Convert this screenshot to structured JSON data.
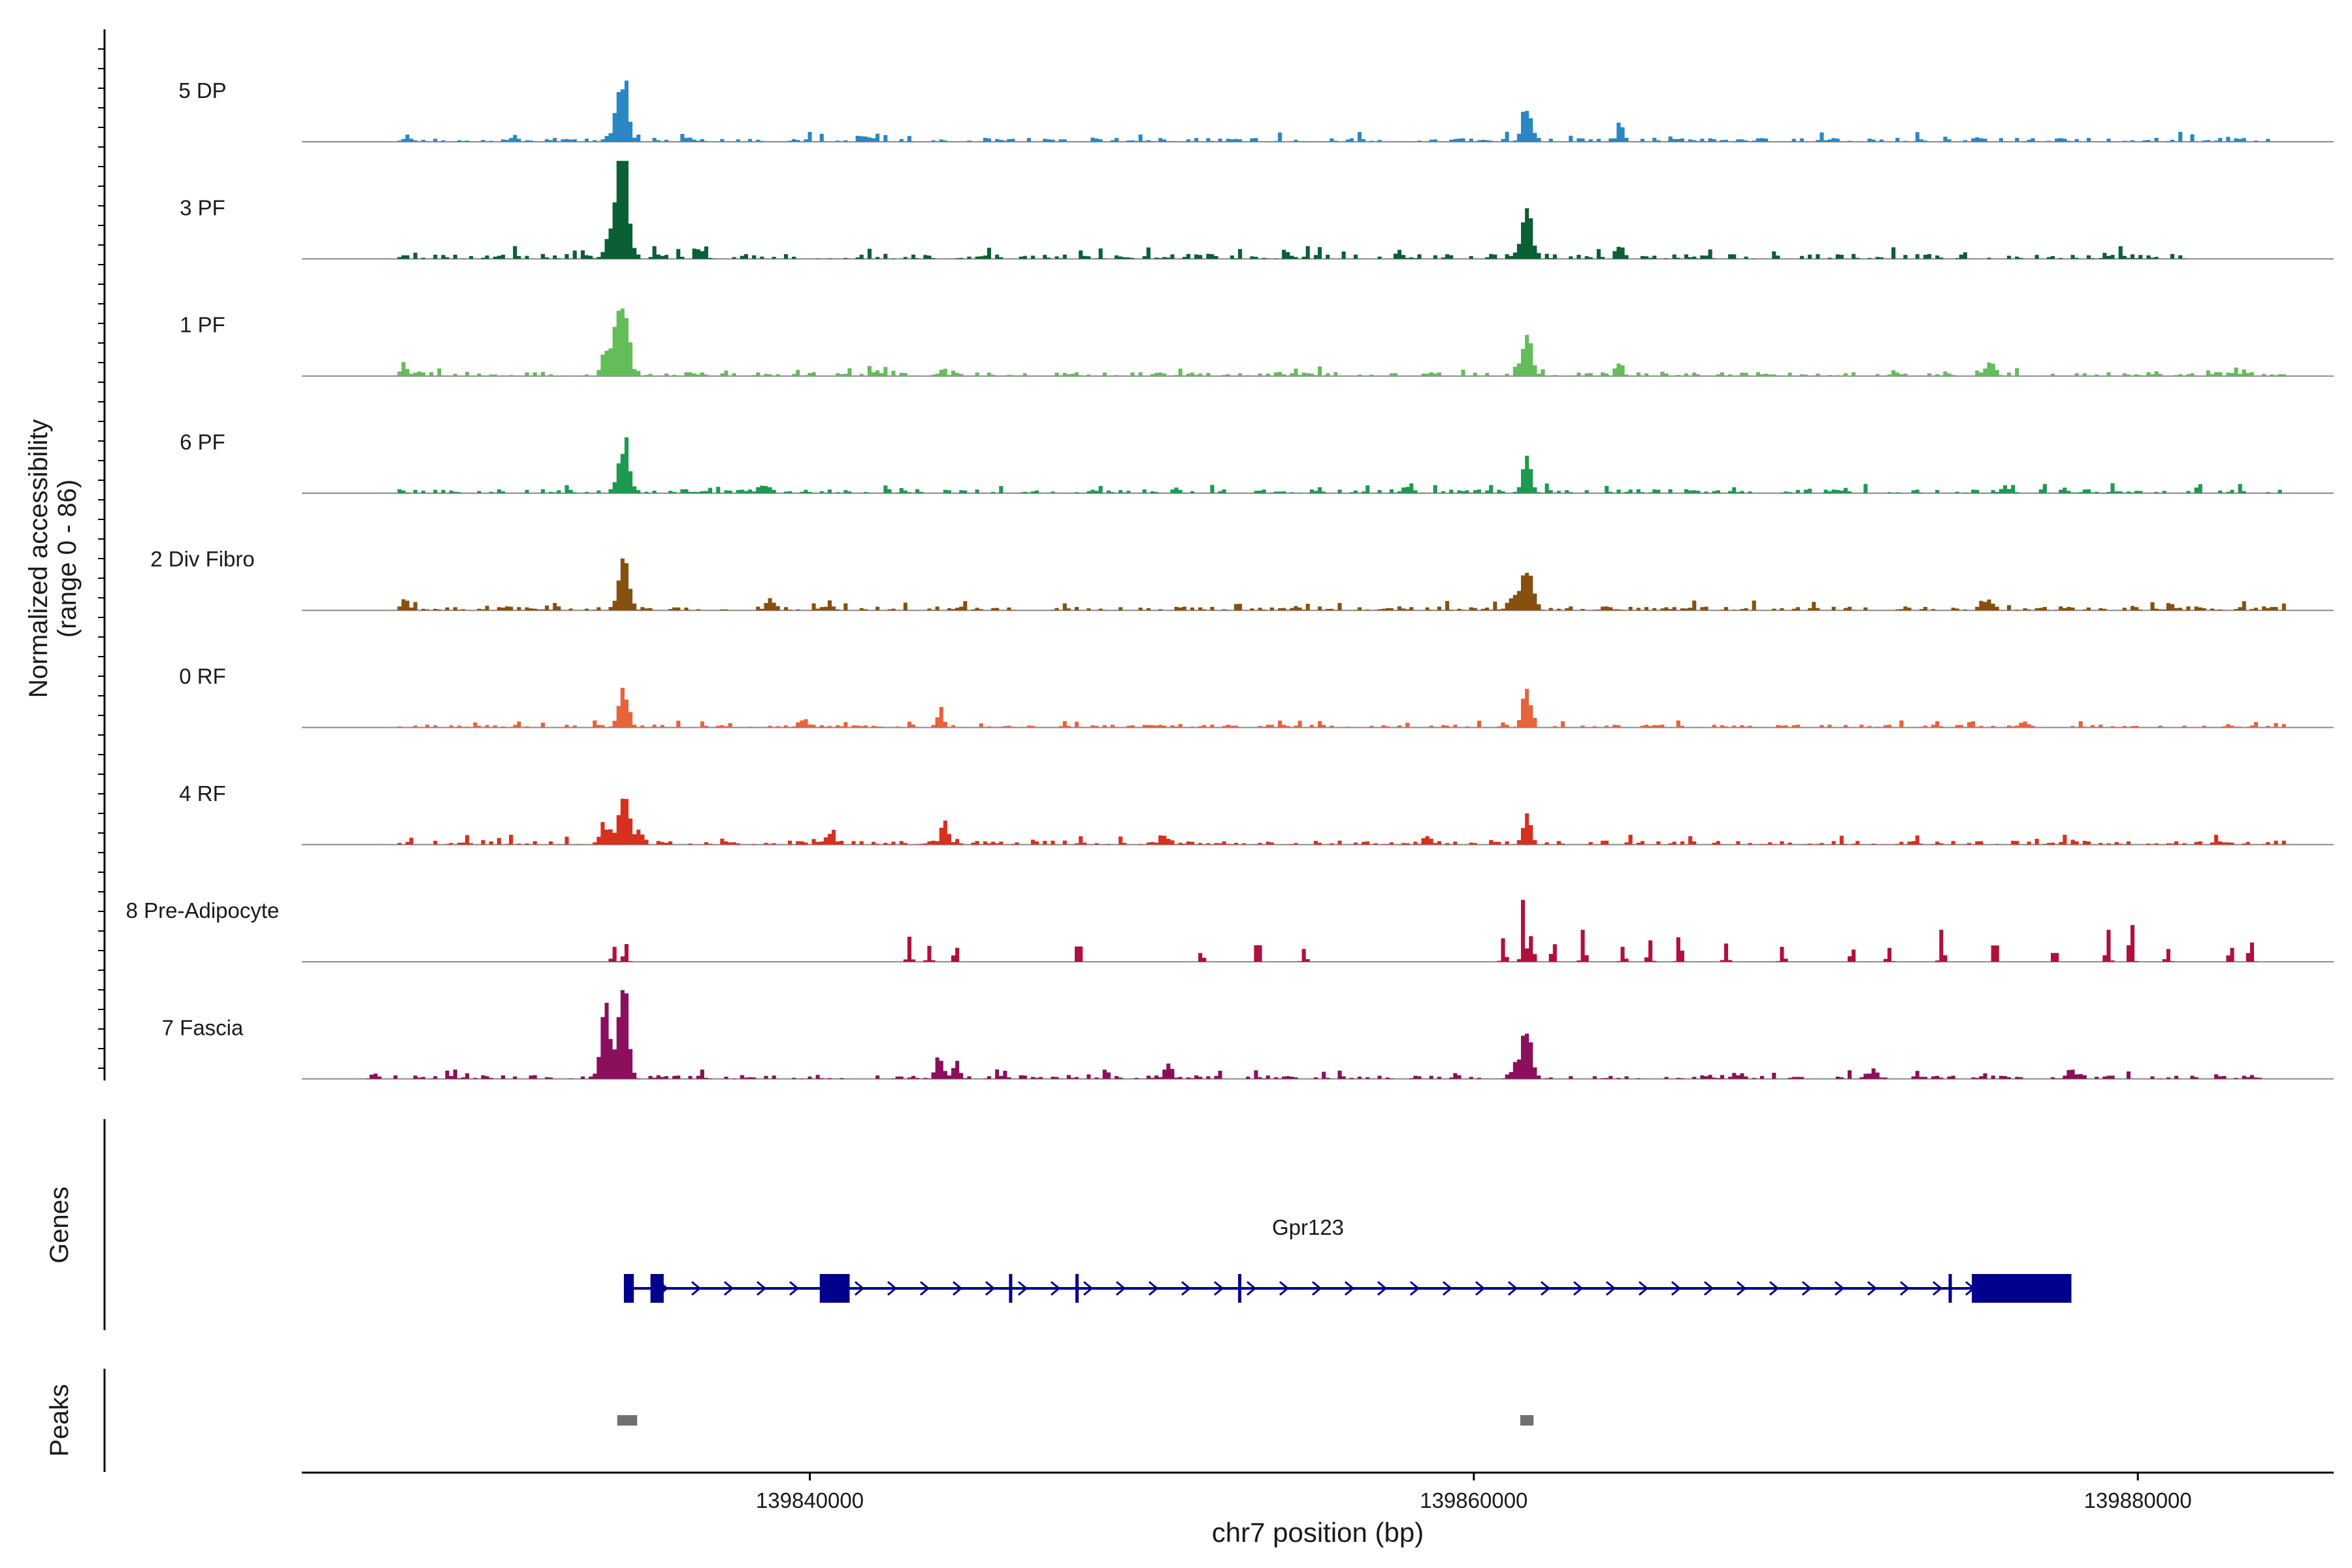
{
  "chart_data": {
    "type": "area",
    "title": "",
    "ylabel_line1": "Normalized accessibility",
    "ylabel_line2": "(range 0 - 86)",
    "ylim": [
      0,
      86
    ],
    "xlabel": "chr7 position (bp)",
    "xlim": [
      139824700,
      139885900
    ],
    "x_ticks": [
      {
        "value": 139840000,
        "label": "139840000"
      },
      {
        "value": 139860000,
        "label": "139860000"
      },
      {
        "value": 139880000,
        "label": "139880000"
      }
    ],
    "bin_bp": 120,
    "tracks": [
      {
        "name": "5 DP",
        "color": "#2b87c4",
        "coverage": [
          [
            139827600,
            139884000
          ]
        ],
        "sparse": false,
        "noise": 3.5,
        "seed": 11,
        "peaks": [
          [
            139834300,
            46,
            160
          ],
          [
            139834500,
            22,
            100
          ],
          [
            139861600,
            34,
            140
          ],
          [
            139864400,
            13,
            100
          ],
          [
            139831100,
            4,
            90
          ],
          [
            139841600,
            5,
            120
          ],
          [
            139868600,
            4,
            90
          ],
          [
            139875100,
            3,
            80
          ]
        ]
      },
      {
        "name": "3 PF",
        "color": "#0b5f34",
        "coverage": [
          [
            139827600,
            139881400
          ]
        ],
        "sparse": false,
        "noise": 4.5,
        "seed": 23,
        "peaks": [
          [
            139834400,
            78,
            130
          ],
          [
            139834200,
            40,
            220
          ],
          [
            139861600,
            38,
            150
          ],
          [
            139864400,
            11,
            100
          ],
          [
            139836700,
            5,
            120
          ],
          [
            139857800,
            4,
            110
          ]
        ]
      },
      {
        "name": "1 PF",
        "color": "#63bd59",
        "coverage": [
          [
            139827600,
            139884400
          ]
        ],
        "sparse": false,
        "noise": 3.5,
        "seed": 37,
        "peaks": [
          [
            139834400,
            70,
            140
          ],
          [
            139834100,
            30,
            180
          ],
          [
            139833800,
            12,
            90
          ],
          [
            139861600,
            30,
            150
          ],
          [
            139864400,
            11,
            100
          ],
          [
            139827800,
            10,
            120
          ],
          [
            139875600,
            12,
            120
          ],
          [
            139842000,
            5,
            120
          ],
          [
            139844000,
            4,
            120
          ]
        ]
      },
      {
        "name": "6 PF",
        "color": "#1e9a50",
        "coverage": [
          [
            139827600,
            139884400
          ]
        ],
        "sparse": false,
        "noise": 3.5,
        "seed": 41,
        "peaks": [
          [
            139834400,
            45,
            150
          ],
          [
            139861600,
            26,
            140
          ],
          [
            139838600,
            8,
            160
          ],
          [
            139858000,
            6,
            150
          ],
          [
            139876000,
            5,
            140
          ]
        ]
      },
      {
        "name": "2 Div Fibro",
        "color": "#86510f",
        "coverage": [
          [
            139827600,
            139884400
          ]
        ],
        "sparse": false,
        "noise": 3.5,
        "seed": 53,
        "peaks": [
          [
            139834400,
            45,
            150
          ],
          [
            139861600,
            38,
            150
          ],
          [
            139861200,
            12,
            160
          ],
          [
            139827800,
            10,
            100
          ],
          [
            139838800,
            8,
            130
          ],
          [
            139875500,
            8,
            100
          ]
        ]
      },
      {
        "name": "0 RF",
        "color": "#e8623a",
        "coverage": [
          [
            139827600,
            139884400
          ]
        ],
        "sparse": false,
        "noise": 2.5,
        "seed": 67,
        "peaks": [
          [
            139834400,
            30,
            150
          ],
          [
            139861600,
            32,
            130
          ],
          [
            139843950,
            10,
            110
          ],
          [
            139839800,
            6,
            150
          ],
          [
            139876600,
            5,
            150
          ]
        ]
      },
      {
        "name": "4 RF",
        "color": "#d7301f",
        "coverage": [
          [
            139827600,
            139884400
          ]
        ],
        "sparse": false,
        "noise": 3.5,
        "seed": 79,
        "peaks": [
          [
            139834400,
            52,
            150
          ],
          [
            139833800,
            18,
            110
          ],
          [
            139861600,
            25,
            120
          ],
          [
            139844050,
            17,
            110
          ],
          [
            139840650,
            13,
            110
          ],
          [
            139850650,
            9,
            120
          ],
          [
            139858600,
            8,
            110
          ],
          [
            139834900,
            10,
            110
          ]
        ]
      },
      {
        "name": "8 Pre-Adipocyte",
        "color": "#b0103c",
        "coverage": [],
        "sparse": true,
        "noise": 0,
        "seed": 97,
        "peaks": [
          [
            139834100,
            14,
            55
          ],
          [
            139834450,
            18,
            55
          ],
          [
            139843000,
            22,
            55
          ],
          [
            139843600,
            14,
            55
          ],
          [
            139844400,
            16,
            55
          ],
          [
            139848100,
            22,
            60
          ],
          [
            139851800,
            10,
            55
          ],
          [
            139853500,
            24,
            60
          ],
          [
            139854900,
            12,
            55
          ],
          [
            139860900,
            22,
            55
          ],
          [
            139861500,
            58,
            55
          ],
          [
            139861750,
            26,
            55
          ],
          [
            139862400,
            20,
            55
          ],
          [
            139863300,
            30,
            55
          ],
          [
            139864500,
            14,
            55
          ],
          [
            139865300,
            20,
            55
          ],
          [
            139866200,
            28,
            55
          ],
          [
            139867600,
            16,
            55
          ],
          [
            139869300,
            14,
            55
          ],
          [
            139871400,
            14,
            55
          ],
          [
            139872500,
            13,
            55
          ],
          [
            139874100,
            30,
            55
          ],
          [
            139875700,
            26,
            55
          ],
          [
            139877500,
            14,
            55
          ],
          [
            139879100,
            30,
            55
          ],
          [
            139879800,
            42,
            55
          ],
          [
            139880900,
            12,
            55
          ],
          [
            139882800,
            16,
            55
          ],
          [
            139883400,
            22,
            55
          ]
        ]
      },
      {
        "name": "7 Fascia",
        "color": "#8b0f5c",
        "coverage": [
          [
            139827500,
            139883700
          ]
        ],
        "sparse": false,
        "noise": 3.5,
        "seed": 101,
        "peaks": [
          [
            139834400,
            86,
            140
          ],
          [
            139833800,
            50,
            110
          ],
          [
            139834000,
            20,
            200
          ],
          [
            139861600,
            38,
            140
          ],
          [
            139861300,
            14,
            140
          ],
          [
            139843900,
            20,
            110
          ],
          [
            139844400,
            14,
            110
          ],
          [
            139850800,
            12,
            110
          ],
          [
            139826900,
            5,
            100
          ],
          [
            139872000,
            6,
            150
          ],
          [
            139878000,
            6,
            150
          ]
        ]
      }
    ],
    "gene": {
      "label": "Genes",
      "name": "Gpr123",
      "color": "#00008b",
      "start": 139834400,
      "end": 139878000,
      "exons": [
        [
          139834400,
          139834700,
          "big"
        ],
        [
          139835200,
          139835600,
          "big"
        ],
        [
          139840300,
          139841200,
          "big"
        ],
        [
          139846000,
          139846060,
          "line"
        ],
        [
          139848000,
          139848060,
          "line"
        ],
        [
          139852900,
          139852960,
          "line"
        ],
        [
          139874300,
          139874360,
          "line"
        ],
        [
          139875000,
          139878000,
          "big"
        ]
      ]
    },
    "peaks_track": {
      "label": "Peaks",
      "color": "#707070",
      "regions": [
        [
          139834200,
          139834800
        ],
        [
          139861400,
          139861800
        ]
      ]
    }
  }
}
